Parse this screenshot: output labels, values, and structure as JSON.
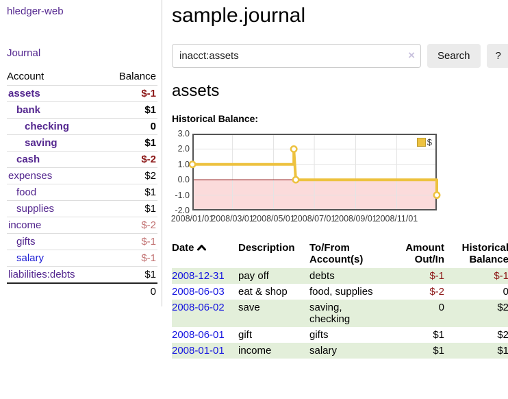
{
  "sidebar": {
    "brand": "hledger-web",
    "journal_link": "Journal",
    "accounts_header": {
      "account": "Account",
      "balance": "Balance"
    },
    "accounts": [
      {
        "name": "assets",
        "depth": 1,
        "bold": true,
        "balance": "$-1",
        "negative": "strong"
      },
      {
        "name": "bank",
        "depth": 2,
        "bold": true,
        "balance": "$1",
        "negative": ""
      },
      {
        "name": "checking",
        "depth": 3,
        "bold": true,
        "balance": "0",
        "negative": ""
      },
      {
        "name": "saving",
        "depth": 3,
        "bold": true,
        "balance": "$1",
        "negative": ""
      },
      {
        "name": "cash",
        "depth": 2,
        "bold": true,
        "balance": "$-2",
        "negative": "strong"
      },
      {
        "name": "expenses",
        "depth": 1,
        "bold": false,
        "balance": "$2",
        "negative": ""
      },
      {
        "name": "food",
        "depth": 2,
        "bold": false,
        "balance": "$1",
        "negative": ""
      },
      {
        "name": "supplies",
        "depth": 2,
        "bold": false,
        "balance": "$1",
        "negative": ""
      },
      {
        "name": "income",
        "depth": 1,
        "bold": false,
        "balance": "$-2",
        "negative": "soft"
      },
      {
        "name": "gifts",
        "depth": 2,
        "bold": false,
        "balance": "$-1",
        "negative": "soft"
      },
      {
        "name": "salary",
        "depth": 2,
        "bold": false,
        "balance": "$-1",
        "negative": "soft",
        "unvisited": true
      },
      {
        "name": "liabilities:debts",
        "depth": 1,
        "bold": false,
        "balance": "$1",
        "negative": ""
      }
    ],
    "total": "0"
  },
  "header": {
    "title": "sample.journal"
  },
  "search": {
    "value": "inacct:assets",
    "clear_icon": "×",
    "button_label": "Search",
    "help_label": "?"
  },
  "account_page": {
    "heading": "assets",
    "chart_label": "Historical Balance:"
  },
  "chart_data": {
    "type": "line",
    "title": "Historical Balance",
    "ylim": [
      -2,
      3
    ],
    "y_ticks": [
      "3.0",
      "2.0",
      "1.0",
      "0.0",
      "-1.0",
      "-2.0"
    ],
    "x_ticks": [
      {
        "label": "2008/01/01",
        "f": 0.0
      },
      {
        "label": "2008/03/01",
        "f": 0.164
      },
      {
        "label": "2008/05/01",
        "f": 0.332
      },
      {
        "label": "2008/07/01",
        "f": 0.499
      },
      {
        "label": "2008/09/01",
        "f": 0.668
      },
      {
        "label": "2008/11/01",
        "f": 0.836
      }
    ],
    "legend": [
      {
        "label": "$",
        "color": "#edc240"
      }
    ],
    "series": [
      {
        "name": "$",
        "color": "#edc240",
        "step_path": [
          [
            0,
            1
          ],
          [
            0.415,
            1
          ],
          [
            0.415,
            2
          ],
          [
            0.423,
            0
          ],
          [
            1,
            0
          ],
          [
            1,
            -1
          ]
        ],
        "points": [
          {
            "date": "2008-01-01",
            "f": 0.0,
            "y": 1
          },
          {
            "date": "2008-06-01",
            "f": 0.415,
            "y": 2
          },
          {
            "date": "2008-06-03",
            "f": 0.423,
            "y": 0
          },
          {
            "date": "2008-12-31",
            "f": 1.0,
            "y": -1
          }
        ]
      }
    ],
    "below_zero": {
      "fill": "#fbdbdb",
      "line": "#8b0000"
    },
    "grid_color": "#e4e4e4",
    "border_color": "#545454",
    "grid": true,
    "legend_position": "top-right"
  },
  "register": {
    "headers": [
      {
        "label": "Date",
        "sorted": "asc",
        "align": "left"
      },
      {
        "label": "Description",
        "align": "left"
      },
      {
        "label": "To/From\nAccount(s)",
        "align": "left"
      },
      {
        "label": "Amount\nOut/In",
        "align": "right"
      },
      {
        "label": "Historical\nBalance",
        "align": "right"
      }
    ],
    "rows": [
      {
        "date": "2008-12-31",
        "description": "pay off",
        "accounts": "debts",
        "amount": "$-1",
        "balance": "$-1"
      },
      {
        "date": "2008-06-03",
        "description": "eat & shop",
        "accounts": "food, supplies",
        "amount": "$-2",
        "balance": "0"
      },
      {
        "date": "2008-06-02",
        "description": "save",
        "accounts": "saving,\nchecking",
        "amount": "0",
        "balance": "$2"
      },
      {
        "date": "2008-06-01",
        "description": "gift",
        "accounts": "gifts",
        "amount": "$1",
        "balance": "$2"
      },
      {
        "date": "2008-01-01",
        "description": "income",
        "accounts": "salary",
        "amount": "$1",
        "balance": "$1"
      }
    ]
  }
}
